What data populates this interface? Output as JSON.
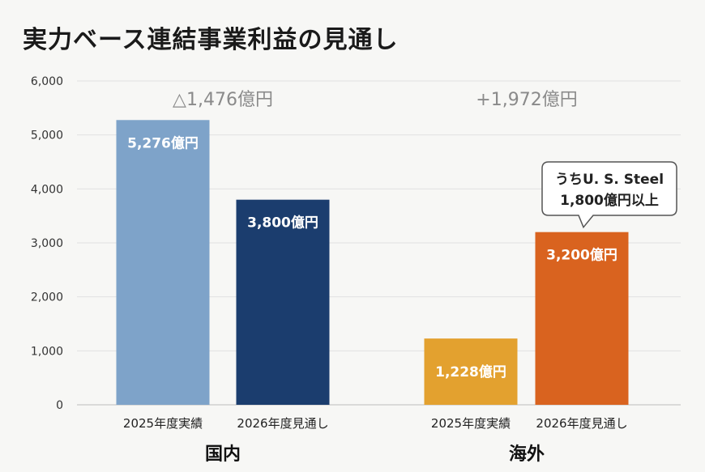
{
  "title": "実力ベース連結事業利益の見通し",
  "chart_data": {
    "type": "bar",
    "ylim": [
      0,
      6000
    ],
    "yticks": [
      0,
      1000,
      2000,
      3000,
      4000,
      5000,
      6000
    ],
    "ytick_labels": [
      "0",
      "1,000",
      "2,000",
      "3,000",
      "4,000",
      "5,000",
      "6,000"
    ],
    "grid": true,
    "groups": [
      {
        "name": "国内",
        "difference_label": "△1,476億円",
        "bars": [
          {
            "category": "2025年度実績",
            "value": 5276,
            "label": "5,276億円",
            "color": "#7ea3c9"
          },
          {
            "category": "2026年度見通し",
            "value": 3800,
            "label": "3,800億円",
            "color": "#1b3d6e"
          }
        ]
      },
      {
        "name": "海外",
        "difference_label": "+1,972億円",
        "bars": [
          {
            "category": "2025年度実績",
            "value": 1228,
            "label": "1,228億円",
            "color": "#e3a12f"
          },
          {
            "category": "2026年度見通し",
            "value": 3200,
            "label": "3,200億円",
            "color": "#d9631f"
          }
        ]
      }
    ],
    "annotation": {
      "lines": [
        "うちU. S. Steel",
        "1,800億円以上"
      ],
      "target": "海外 2026年度見通し"
    }
  }
}
